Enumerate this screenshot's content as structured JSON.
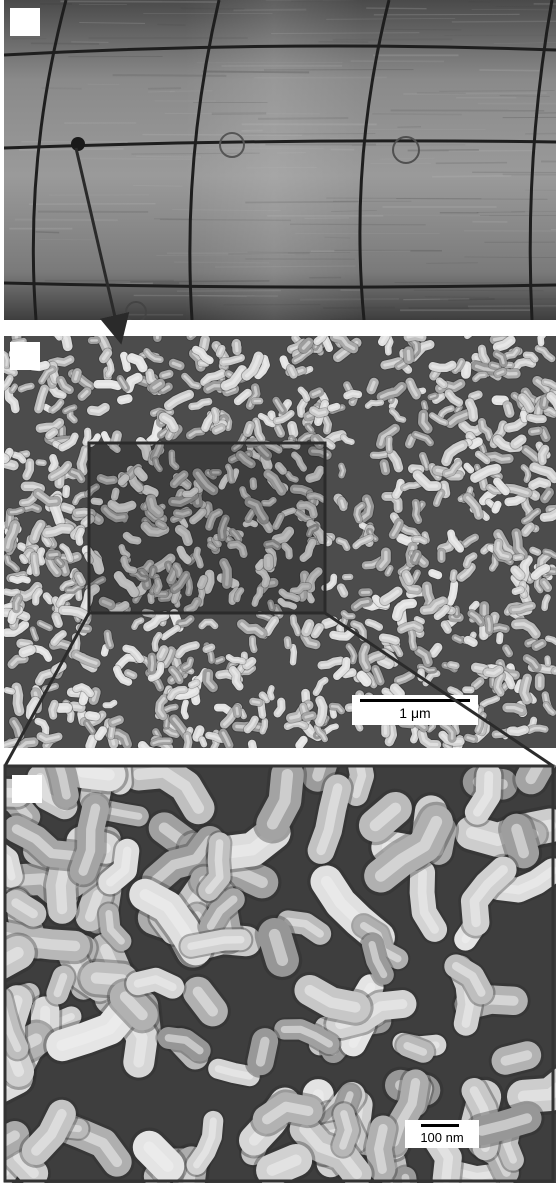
{
  "figure": {
    "panels": [
      {
        "id": "a",
        "label": "",
        "content": "photograph"
      },
      {
        "id": "b",
        "label": "",
        "content": "micrograph"
      },
      {
        "id": "c",
        "label": "",
        "content": "micrograph"
      }
    ],
    "scalebar_b": {
      "label": "1 μm"
    },
    "scalebar_c": {
      "label": "100 nm"
    }
  },
  "colors": {
    "frame": "#333333",
    "arrow": "#2a2a2a",
    "label_box": "#ffffff",
    "photo_base": "#6d6d6d",
    "sem_base": "#555555"
  }
}
